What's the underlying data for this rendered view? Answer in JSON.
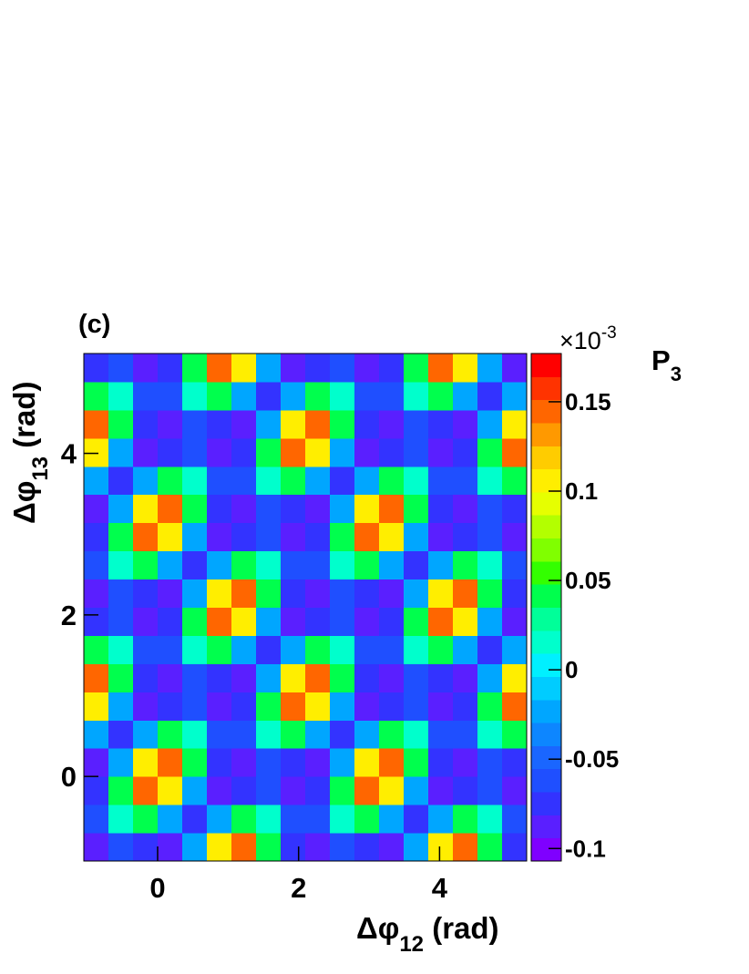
{
  "chart_data": {
    "type": "heatmap",
    "panel_label": "(c)",
    "xlabel": {
      "text": "Δφ",
      "sub": "12",
      "after": " (rad)"
    },
    "ylabel": {
      "text": "Δφ",
      "sub": "13",
      "after": " (rad)"
    },
    "zlabel": {
      "text": "P",
      "sub": "3"
    },
    "zmultiplier": {
      "text": "×10",
      "sup": "-3"
    },
    "xlim": [
      -1.047,
      5.236
    ],
    "ylim": [
      -1.047,
      5.236
    ],
    "xticks": [
      0,
      2,
      4
    ],
    "yticks": [
      0,
      2,
      4
    ],
    "zlim": [
      -0.107,
      0.177
    ],
    "zticks": [
      -0.1,
      -0.05,
      0,
      0.05,
      0.1,
      0.15
    ],
    "palette": [
      "#7f00ff",
      "#5a1fff",
      "#3333ff",
      "#1f4fff",
      "#1a66ff",
      "#0d86ff",
      "#00a6ff",
      "#00ccff",
      "#00f0ff",
      "#00ffcc",
      "#00ff99",
      "#00ff4d",
      "#33ff00",
      "#80ff00",
      "#b3ff00",
      "#e6ff00",
      "#ffee00",
      "#ffcc00",
      "#ff9900",
      "#ff6600",
      "#ff3300",
      "#ff0000"
    ],
    "z": [
      [
        -0.087,
        -0.056,
        -0.07,
        -0.091,
        -0.02,
        0.11,
        0.149,
        0.046,
        -0.07,
        -0.087,
        -0.056,
        -0.07,
        -0.091,
        -0.02,
        0.11,
        0.149,
        0.046,
        -0.07
      ],
      [
        -0.056,
        0.02,
        0.046,
        -0.02,
        -0.07,
        -0.02,
        0.046,
        0.02,
        -0.056,
        -0.056,
        0.02,
        0.046,
        -0.02,
        -0.07,
        -0.02,
        0.046,
        0.02,
        -0.056
      ],
      [
        -0.07,
        0.046,
        0.149,
        0.11,
        -0.02,
        -0.091,
        -0.07,
        -0.056,
        -0.087,
        -0.07,
        0.046,
        0.149,
        0.11,
        -0.02,
        -0.091,
        -0.07,
        -0.056,
        -0.087
      ],
      [
        -0.091,
        -0.02,
        0.11,
        0.149,
        0.046,
        -0.07,
        -0.087,
        -0.056,
        -0.07,
        -0.091,
        -0.02,
        0.11,
        0.149,
        0.046,
        -0.07,
        -0.087,
        -0.056,
        -0.07
      ],
      [
        -0.02,
        -0.07,
        -0.02,
        0.046,
        0.02,
        -0.056,
        -0.056,
        0.02,
        0.046,
        -0.02,
        -0.07,
        -0.02,
        0.046,
        0.02,
        -0.056,
        -0.056,
        0.02,
        0.046
      ],
      [
        0.11,
        -0.02,
        -0.091,
        -0.07,
        -0.056,
        -0.087,
        -0.07,
        0.046,
        0.149,
        0.11,
        -0.02,
        -0.091,
        -0.07,
        -0.056,
        -0.087,
        -0.07,
        0.046,
        0.149
      ],
      [
        0.149,
        0.046,
        -0.07,
        -0.087,
        -0.056,
        -0.07,
        -0.091,
        -0.02,
        0.11,
        0.149,
        0.046,
        -0.07,
        -0.087,
        -0.056,
        -0.07,
        -0.091,
        -0.02,
        0.11
      ],
      [
        0.046,
        0.02,
        -0.056,
        -0.056,
        0.02,
        0.046,
        -0.02,
        -0.07,
        -0.02,
        0.046,
        0.02,
        -0.056,
        -0.056,
        0.02,
        0.046,
        -0.02,
        -0.07,
        -0.02
      ],
      [
        -0.07,
        -0.056,
        -0.087,
        -0.07,
        0.046,
        0.149,
        0.11,
        -0.02,
        -0.091,
        -0.07,
        -0.056,
        -0.087,
        -0.07,
        0.046,
        0.149,
        0.11,
        -0.02,
        -0.091
      ],
      [
        -0.087,
        -0.056,
        -0.07,
        -0.091,
        -0.02,
        0.11,
        0.149,
        0.046,
        -0.07,
        -0.087,
        -0.056,
        -0.07,
        -0.091,
        -0.02,
        0.11,
        0.149,
        0.046,
        -0.07
      ],
      [
        -0.056,
        0.02,
        0.046,
        -0.02,
        -0.07,
        -0.02,
        0.046,
        0.02,
        -0.056,
        -0.056,
        0.02,
        0.046,
        -0.02,
        -0.07,
        -0.02,
        0.046,
        0.02,
        -0.056
      ],
      [
        -0.07,
        0.046,
        0.149,
        0.11,
        -0.02,
        -0.091,
        -0.07,
        -0.056,
        -0.087,
        -0.07,
        0.046,
        0.149,
        0.11,
        -0.02,
        -0.091,
        -0.07,
        -0.056,
        -0.087
      ],
      [
        -0.091,
        -0.02,
        0.11,
        0.149,
        0.046,
        -0.07,
        -0.087,
        -0.056,
        -0.07,
        -0.091,
        -0.02,
        0.11,
        0.149,
        0.046,
        -0.07,
        -0.087,
        -0.056,
        -0.07
      ],
      [
        -0.02,
        -0.07,
        -0.02,
        0.046,
        0.02,
        -0.056,
        -0.056,
        0.02,
        0.046,
        -0.02,
        -0.07,
        -0.02,
        0.046,
        0.02,
        -0.056,
        -0.056,
        0.02,
        0.046
      ],
      [
        0.11,
        -0.02,
        -0.091,
        -0.07,
        -0.056,
        -0.087,
        -0.07,
        0.046,
        0.149,
        0.11,
        -0.02,
        -0.091,
        -0.07,
        -0.056,
        -0.087,
        -0.07,
        0.046,
        0.149
      ],
      [
        0.149,
        0.046,
        -0.07,
        -0.087,
        -0.056,
        -0.07,
        -0.091,
        -0.02,
        0.11,
        0.149,
        0.046,
        -0.07,
        -0.087,
        -0.056,
        -0.07,
        -0.091,
        -0.02,
        0.11
      ],
      [
        0.046,
        0.02,
        -0.056,
        -0.056,
        0.02,
        0.046,
        -0.02,
        -0.07,
        -0.02,
        0.046,
        0.02,
        -0.056,
        -0.056,
        0.02,
        0.046,
        -0.02,
        -0.07,
        -0.02
      ],
      [
        -0.07,
        -0.056,
        -0.087,
        -0.07,
        0.046,
        0.149,
        0.11,
        -0.02,
        -0.091,
        -0.07,
        -0.056,
        -0.087,
        -0.07,
        0.046,
        0.149,
        0.11,
        -0.02,
        -0.091
      ]
    ]
  }
}
